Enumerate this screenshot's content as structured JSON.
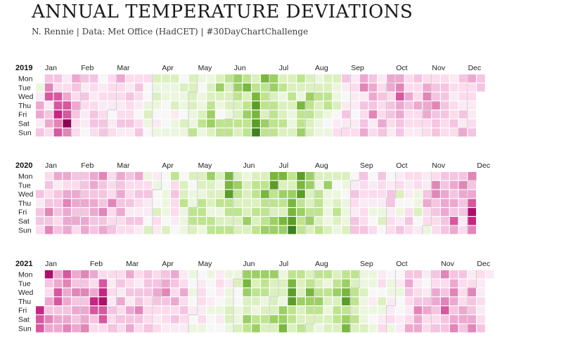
{
  "title": "ANNUAL TEMPERATURE DEVIATIONS",
  "subtitle": "N. Rennie | Data: Met Office (HadCET) | #30DayChartChallenge",
  "chart_data": {
    "type": "heatmap",
    "weekday_labels": [
      "Mon",
      "Tue",
      "Wed",
      "Thu",
      "Fri",
      "Sat",
      "Sun"
    ],
    "month_labels": [
      "Jan",
      "Feb",
      "Mar",
      "Apr",
      "May",
      "Jun",
      "Jul",
      "Aug",
      "Sep",
      "Oct",
      "Nov",
      "Dec"
    ],
    "color_scale": {
      "low": "#276419",
      "mid": "#f7f7f7",
      "high": "#8e0152"
    },
    "years": [
      {
        "year": "2019",
        "deviations": [
          -1,
          1,
          4,
          4,
          1,
          3,
          3,
          5,
          6,
          1,
          3,
          4,
          2,
          3,
          2,
          6,
          6,
          7,
          5,
          6,
          1,
          2,
          4,
          6,
          6,
          9,
          5,
          4,
          3,
          2,
          4,
          3,
          2,
          2,
          3,
          1,
          3,
          2,
          1,
          1,
          0,
          3,
          2,
          1,
          2,
          3,
          3,
          2,
          0,
          1,
          2,
          1,
          2,
          3,
          3,
          2,
          2,
          2,
          1,
          0,
          1,
          2,
          4,
          2,
          2,
          1,
          2,
          3,
          1,
          2,
          1,
          3,
          2,
          2,
          3,
          1,
          2,
          3,
          2,
          1,
          0,
          2,
          3,
          2,
          0,
          0,
          -1,
          -2,
          -1,
          0,
          -2,
          -1,
          -2,
          -1,
          0,
          1,
          -1,
          -2,
          -1,
          -1,
          0,
          0,
          0,
          -1,
          -2,
          -1,
          -1,
          -2,
          1,
          -1,
          -1,
          0,
          -2,
          -1,
          -1,
          0,
          -2,
          -1,
          -2,
          -2,
          -2,
          -2,
          -1,
          -1,
          -3,
          -1,
          0,
          -1,
          -1,
          -2,
          -3,
          -1,
          -1,
          -2,
          -2,
          -3,
          -4,
          -4,
          -2,
          -2,
          -4,
          -2,
          -1,
          0,
          -3,
          -3,
          -3,
          -2,
          -2,
          -2,
          -1,
          -3,
          -3,
          -4,
          -4,
          -3,
          -2,
          -2,
          -3,
          -2,
          -3,
          -5,
          -2,
          -3,
          -4,
          -3,
          -3,
          -2,
          -3,
          -5,
          -6,
          -5,
          -6,
          -7,
          -5,
          -3,
          -3,
          -3,
          -2,
          -4,
          -3,
          -4,
          -4,
          -2,
          -3,
          -3,
          -3,
          -3,
          -2,
          -3,
          -1,
          -2,
          -2,
          -3,
          -2,
          -2,
          -2,
          -3,
          -2,
          -1,
          -1,
          -2,
          -3,
          -2,
          -1,
          -5,
          -3,
          -3,
          -4,
          -2,
          -2,
          -4,
          -3,
          -3,
          -2,
          -2,
          -1,
          -2,
          -3,
          -2,
          -2,
          -1,
          -1,
          -2,
          -2,
          -3,
          -3,
          -1,
          0,
          -1,
          -2,
          -1,
          -1,
          -2,
          0,
          1,
          2,
          3,
          1,
          0,
          1,
          3,
          1,
          2,
          1,
          2,
          1,
          1,
          0,
          1,
          2,
          4,
          5,
          1,
          3,
          2,
          3,
          4,
          3,
          4,
          4,
          3,
          5,
          1,
          2,
          1,
          2,
          3,
          2,
          2,
          4,
          3,
          4,
          4,
          2,
          3,
          3,
          2,
          1,
          4,
          5,
          6,
          4,
          4,
          3,
          3,
          2,
          2,
          4,
          3,
          2,
          2,
          1,
          3,
          2,
          2,
          4,
          2,
          2,
          1,
          2,
          4,
          5,
          4,
          4,
          2,
          2,
          2,
          3,
          3,
          5,
          3,
          3,
          3,
          2,
          3,
          3,
          3,
          3,
          2,
          2,
          1,
          2,
          1,
          2,
          2,
          3,
          2,
          3,
          2,
          2,
          1,
          3,
          1,
          4,
          4,
          2,
          2,
          1,
          1,
          2,
          3,
          3,
          3
        ]
      },
      {
        "year": "2020",
        "deviations": [
          3,
          1,
          3,
          3,
          2,
          2,
          3,
          2,
          3,
          5,
          3,
          5,
          4,
          1,
          3,
          3,
          3,
          2,
          3,
          4,
          2,
          4,
          5,
          4,
          4,
          4,
          3,
          2,
          4,
          4,
          3,
          4,
          2,
          3,
          3,
          3,
          4,
          3,
          4,
          4,
          4,
          4,
          3,
          4,
          4,
          3,
          3,
          5,
          3,
          3,
          3,
          5,
          3,
          4,
          2,
          2,
          2,
          5,
          2,
          2,
          3,
          4,
          3,
          4,
          3,
          4,
          2,
          2,
          3,
          2,
          2,
          3,
          1,
          3,
          2,
          4,
          2,
          3,
          2,
          1,
          3,
          1,
          -1,
          2,
          3,
          1,
          1,
          0,
          -2,
          1,
          -1,
          0,
          0,
          -2,
          2,
          1,
          0,
          0,
          -1,
          -1,
          -1,
          0,
          -2,
          -3,
          2,
          3,
          2,
          2,
          1,
          0,
          0,
          -2,
          -2,
          -3,
          -1,
          -1,
          -1,
          -2,
          0,
          -1,
          -1,
          -3,
          -3,
          -2,
          -2,
          -2,
          -1,
          -3,
          -3,
          -3,
          -1,
          -4,
          -2,
          -2,
          -2,
          -1,
          -3,
          -3,
          -2,
          -1,
          -2,
          -3,
          -1,
          -2,
          -3,
          -5,
          -5,
          -6,
          -3,
          -3,
          -2,
          -3,
          -2,
          -4,
          -3,
          -2,
          -3,
          -2,
          -2,
          -1,
          -2,
          -2,
          -2,
          -2,
          -4,
          -2,
          -2,
          -3,
          -3,
          -2,
          -3,
          -2,
          -3,
          -2,
          -3,
          -5,
          -3,
          -3,
          -3,
          -4,
          -5,
          -6,
          -3,
          -3,
          -2,
          -4,
          -4,
          -5,
          -2,
          -4,
          -3,
          -2,
          -5,
          -4,
          -3,
          -2,
          -4,
          -5,
          -5,
          -6,
          -7,
          -6,
          -5,
          -6,
          -3,
          -4,
          -3,
          -3,
          -4,
          -4,
          -2,
          -2,
          -3,
          -4,
          -2,
          -2,
          -1,
          -3,
          -3,
          -3,
          -2,
          -3,
          -2,
          -4,
          -1,
          -1,
          -1,
          -1,
          -2,
          -2,
          0,
          -1,
          -2,
          -3,
          -2,
          -1,
          -2,
          -1,
          0,
          -1,
          -1,
          -1,
          -2,
          0,
          1,
          3,
          2,
          1,
          3,
          3,
          3,
          2,
          2,
          1,
          2,
          2,
          3,
          0,
          1,
          2,
          1,
          -1,
          0,
          2,
          3,
          2,
          2,
          1,
          -1,
          -2,
          0,
          0,
          1,
          3,
          3,
          1,
          2,
          2,
          1,
          2,
          -2,
          0,
          -1,
          1,
          3,
          2,
          1,
          1,
          0,
          2,
          3,
          2,
          2,
          2,
          -1,
          -1,
          -2,
          0,
          1,
          1,
          1,
          3,
          4,
          2,
          2,
          -1,
          2,
          5,
          5,
          3,
          3,
          2,
          2,
          3,
          3,
          4,
          4,
          4,
          3,
          3,
          3,
          4,
          3,
          4,
          3,
          6,
          4,
          3,
          5,
          4,
          3,
          3,
          1,
          2,
          5,
          3,
          4,
          6,
          8,
          7,
          5
        ]
      },
      {
        "year": "2021",
        "deviations": [
          7,
          6,
          6,
          8,
          3,
          2,
          4,
          3,
          5,
          4,
          4,
          4,
          6,
          6,
          3,
          4,
          4,
          6,
          5,
          4,
          4,
          3,
          4,
          5,
          4,
          3,
          5,
          3,
          4,
          3,
          4,
          5,
          3,
          5,
          3,
          4,
          4,
          5,
          4,
          2,
          4,
          7,
          6,
          3,
          2,
          2,
          6,
          7,
          8,
          6,
          6,
          2,
          2,
          1,
          2,
          1,
          3,
          2,
          3,
          2,
          3,
          1,
          4,
          2,
          3,
          2,
          4,
          2,
          3,
          1,
          4,
          3,
          4,
          2,
          1,
          3,
          3,
          5,
          3,
          2,
          3,
          3,
          3,
          2,
          2,
          2,
          3,
          2,
          3,
          4,
          3,
          2,
          1,
          2,
          3,
          4,
          5,
          3,
          2,
          2,
          1,
          4,
          3,
          2,
          4,
          2,
          3,
          1,
          1,
          2,
          4,
          2,
          3,
          2,
          1,
          -1,
          0,
          -1,
          0,
          1,
          0,
          -1,
          0,
          1,
          2,
          2,
          1,
          2,
          -1,
          -1,
          0,
          0,
          1,
          -1,
          0,
          0,
          1,
          2,
          1,
          0,
          -1,
          1,
          0,
          -1,
          1,
          -1,
          -1,
          -2,
          -2,
          -1,
          -1,
          -2,
          0,
          0,
          -1,
          -1,
          -2,
          -4,
          -5,
          -4,
          -2,
          -2,
          -4,
          -3,
          -4,
          -2,
          -3,
          -2,
          -1,
          -3,
          -4,
          -4,
          -3,
          -3,
          -1,
          -2,
          -3,
          -2,
          -4,
          -2,
          -2,
          -2,
          -2,
          -4,
          -2,
          -1,
          -2,
          -2,
          -1,
          -4,
          -4,
          -5,
          -3,
          -5,
          -6,
          -6,
          -3,
          -3,
          -2,
          -3,
          -2,
          -2,
          -4,
          -2,
          -2,
          -3,
          -2,
          -3,
          -5,
          -4,
          -3,
          -2,
          -2,
          -3,
          -2,
          -3,
          -4,
          -3,
          -2,
          -1,
          -3,
          -1,
          -3,
          -2,
          -1,
          -2,
          -2,
          -2,
          -3,
          -4,
          -2,
          -3,
          -3,
          -2,
          -3,
          -4,
          -5,
          -6,
          -3,
          -4,
          -5,
          -3,
          -2,
          -3,
          -3,
          -2,
          -3,
          -2,
          -1,
          -1,
          -2,
          -1,
          -1,
          -1,
          -2,
          -1,
          -1,
          0,
          1,
          -1,
          0,
          -1,
          1,
          2,
          0,
          -2,
          -1,
          1,
          2,
          0,
          -1,
          -1,
          1,
          1,
          2,
          -1,
          0,
          1,
          -1,
          0,
          0,
          1,
          1,
          3,
          4,
          3,
          2,
          1,
          2,
          4,
          3,
          1,
          2,
          3,
          5,
          4,
          4,
          1,
          0,
          1,
          3,
          4,
          2,
          2,
          3,
          2,
          4,
          4,
          3,
          2,
          3,
          5,
          2,
          3,
          5,
          6,
          3,
          3,
          3,
          4,
          5,
          4,
          3,
          4,
          5,
          3,
          2,
          2,
          2,
          4,
          4,
          3,
          1,
          2,
          5,
          3,
          3,
          4,
          5,
          2,
          1,
          1,
          2,
          1,
          2,
          3,
          1
        ]
      }
    ]
  }
}
